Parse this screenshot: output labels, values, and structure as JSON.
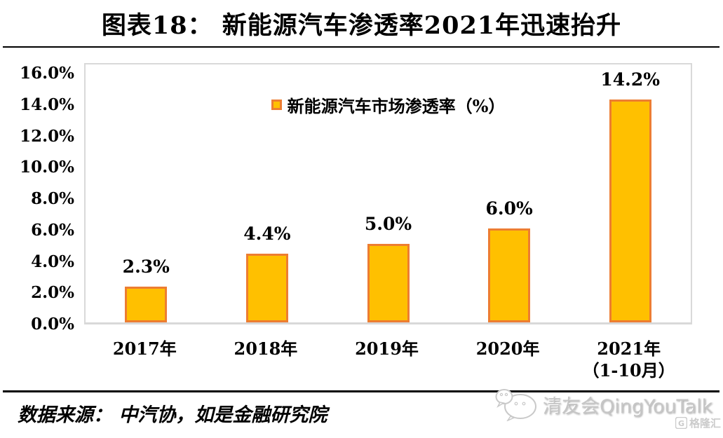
{
  "header": {
    "title": "图表18： 新能源汽车渗透率2021年迅速抬升"
  },
  "legend": {
    "label": "新能源汽车市场渗透率（%）"
  },
  "chart_data": {
    "type": "bar",
    "title": "图表18： 新能源汽车渗透率2021年迅速抬升",
    "series_name": "新能源汽车市场渗透率（%）",
    "categories": [
      [
        "2017年"
      ],
      [
        "2018年"
      ],
      [
        "2019年"
      ],
      [
        "2020年"
      ],
      [
        "2021年",
        "（1-10月）"
      ]
    ],
    "values": [
      2.3,
      4.4,
      5.0,
      6.0,
      14.2
    ],
    "value_labels": [
      "2.3%",
      "4.4%",
      "5.0%",
      "6.0%",
      "14.2%"
    ],
    "ylim": [
      0,
      16
    ],
    "ytick_values": [
      16,
      14,
      12,
      10,
      8,
      6,
      4,
      2,
      0
    ],
    "ytick_labels": [
      "16.0%",
      "14.0%",
      "12.0%",
      "10.0%",
      "8.0%",
      "6.0%",
      "4.0%",
      "2.0%",
      "0.0%"
    ],
    "grid": false,
    "legend_position": "top-center-inside",
    "colors": {
      "bar_fill": "#FFC000",
      "bar_border": "#ED7D31",
      "plot_border": "#D9D9D9"
    }
  },
  "footer": {
    "source": "数据来源： 中汽协，如是金融研究院"
  },
  "watermarks": {
    "wechat_account": "清友会QingYouTalk",
    "logo_text": "格隆汇",
    "logo_letter": "G"
  }
}
